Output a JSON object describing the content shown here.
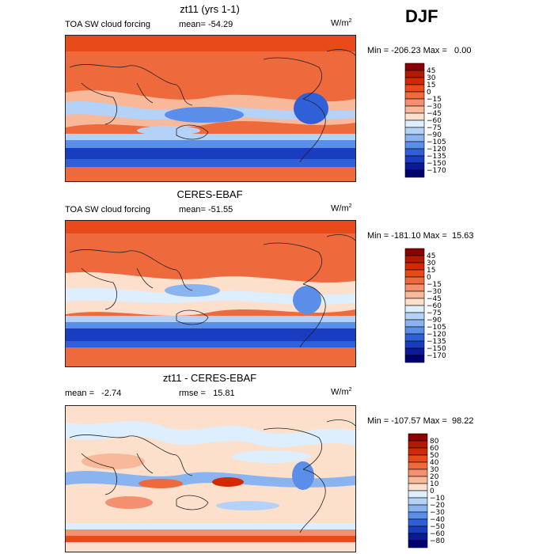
{
  "season": "DJF",
  "panels": [
    {
      "id": "model",
      "title": "zt11 (yrs 1-1)",
      "left_label": "TOA SW cloud forcing",
      "mean_label": "mean= -54.29",
      "units": "W/m",
      "units_sup": "2",
      "minmax": "Min = -206.23 Max =   0.00",
      "colorbar": {
        "levels": [
          "45",
          "30",
          "15",
          "0",
          "-15",
          "-30",
          "-45",
          "-60",
          "-75",
          "-90",
          "-105",
          "-120",
          "-135",
          "-150",
          "-170"
        ],
        "colors": [
          "#8b0000",
          "#b01a00",
          "#d42800",
          "#e84a1a",
          "#ee6a3c",
          "#f49070",
          "#f8b89a",
          "#fde0cc",
          "#ddeeff",
          "#b4d2f8",
          "#8ab4f0",
          "#5a8ee8",
          "#3060d8",
          "#1a3cc0",
          "#0a1a98",
          "#000070"
        ]
      }
    },
    {
      "id": "obs",
      "title": "CERES-EBAF",
      "left_label": "TOA SW cloud forcing",
      "mean_label": "mean= -51.55",
      "units": "W/m",
      "units_sup": "2",
      "minmax": "Min = -181.10 Max =  15.63",
      "colorbar": {
        "levels": [
          "45",
          "30",
          "15",
          "0",
          "-15",
          "-30",
          "-45",
          "-60",
          "-75",
          "-90",
          "-105",
          "-120",
          "-135",
          "-150",
          "-170"
        ],
        "colors": [
          "#8b0000",
          "#b01a00",
          "#d42800",
          "#e84a1a",
          "#ee6a3c",
          "#f49070",
          "#f8b89a",
          "#fde0cc",
          "#ddeeff",
          "#b4d2f8",
          "#8ab4f0",
          "#5a8ee8",
          "#3060d8",
          "#1a3cc0",
          "#0a1a98",
          "#000070"
        ]
      }
    },
    {
      "id": "diff",
      "title": "zt11 - CERES-EBAF",
      "left_label": "mean =   -2.74",
      "mean_label": "rmse =   15.81",
      "units": "W/m",
      "units_sup": "2",
      "minmax": "Min = -107.57 Max =  98.22",
      "colorbar": {
        "levels": [
          "80",
          "60",
          "50",
          "40",
          "30",
          "20",
          "10",
          "0",
          "-10",
          "-20",
          "-30",
          "-40",
          "-50",
          "-60",
          "-80"
        ],
        "colors": [
          "#8b0000",
          "#b01a00",
          "#d42800",
          "#e84a1a",
          "#ee6a3c",
          "#f49070",
          "#f8b89a",
          "#fde0cc",
          "#ddeeff",
          "#b4d2f8",
          "#8ab4f0",
          "#5a8ee8",
          "#3060d8",
          "#1a3cc0",
          "#0a1a98",
          "#000070"
        ]
      }
    }
  ],
  "chart_data": [
    {
      "type": "heatmap",
      "title": "zt11 (yrs 1-1)",
      "subtitle": "TOA SW cloud forcing",
      "mean": -54.29,
      "units": "W/m2",
      "min": -206.23,
      "max": 0.0,
      "contour_levels": [
        45,
        30,
        15,
        0,
        -15,
        -30,
        -45,
        -60,
        -75,
        -90,
        -105,
        -120,
        -135,
        -150,
        -170
      ],
      "x": "longitude 0-360",
      "y": "latitude -90 to 90"
    },
    {
      "type": "heatmap",
      "title": "CERES-EBAF",
      "subtitle": "TOA SW cloud forcing",
      "mean": -51.55,
      "units": "W/m2",
      "min": -181.1,
      "max": 15.63,
      "contour_levels": [
        45,
        30,
        15,
        0,
        -15,
        -30,
        -45,
        -60,
        -75,
        -90,
        -105,
        -120,
        -135,
        -150,
        -170
      ]
    },
    {
      "type": "heatmap",
      "title": "zt11 - CERES-EBAF",
      "mean": -2.74,
      "rmse": 15.81,
      "units": "W/m2",
      "min": -107.57,
      "max": 98.22,
      "contour_levels": [
        80,
        60,
        50,
        40,
        30,
        20,
        10,
        0,
        -10,
        -20,
        -30,
        -40,
        -50,
        -60,
        -80
      ]
    }
  ]
}
